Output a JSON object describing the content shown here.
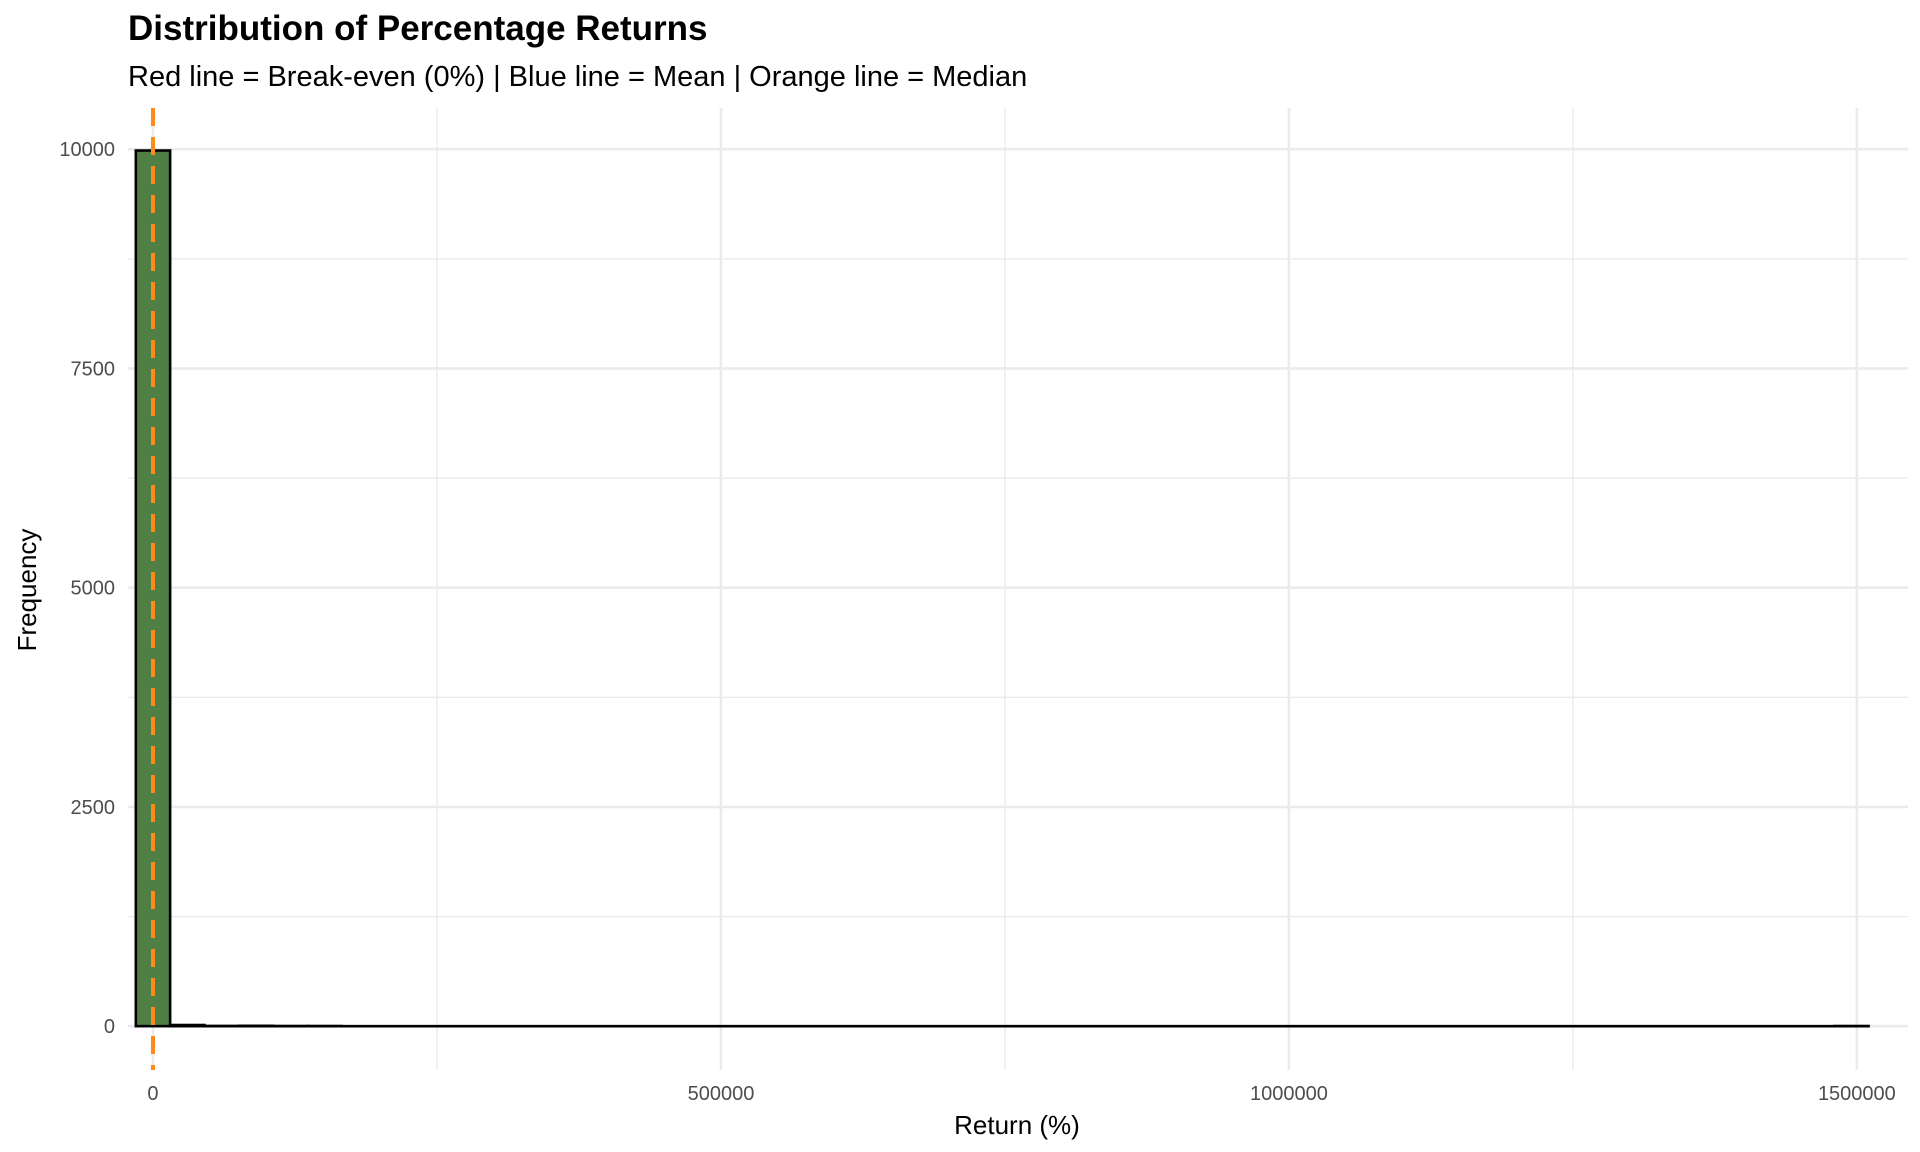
{
  "chart_data": {
    "type": "bar",
    "subtype": "histogram",
    "title": "Distribution of Percentage Returns",
    "subtitle": "Red line = Break-even (0%) | Blue line = Mean | Orange line = Median",
    "xlabel": "Return (%)",
    "ylabel": "Frequency",
    "xlim": [
      -22000,
      1545000
    ],
    "ylim": [
      -500,
      10470
    ],
    "x_ticks": [
      {
        "value": 0,
        "label": "0"
      },
      {
        "value": 500000,
        "label": "500000"
      },
      {
        "value": 1000000,
        "label": "1000000"
      },
      {
        "value": 1500000,
        "label": "1500000"
      }
    ],
    "x_minor_ticks": [
      250000,
      750000,
      1250000
    ],
    "y_ticks": [
      {
        "value": 0,
        "label": "0"
      },
      {
        "value": 2500,
        "label": "2500"
      },
      {
        "value": 5000,
        "label": "5000"
      },
      {
        "value": 7500,
        "label": "7500"
      },
      {
        "value": 10000,
        "label": "10000"
      }
    ],
    "y_minor_ticks": [
      1250,
      3750,
      6250,
      8750
    ],
    "grid": true,
    "legend": "none",
    "bin_width": 30200,
    "bins": [
      {
        "x0": -15100,
        "x1": 15100,
        "count": 9985
      },
      {
        "x0": 15100,
        "x1": 45300,
        "count": 13
      },
      {
        "x0": 45300,
        "x1": 75500,
        "count": 2
      },
      {
        "x0": 75500,
        "x1": 105700,
        "count": 4
      },
      {
        "x0": 105700,
        "x1": 135900,
        "count": 1
      },
      {
        "x0": 135900,
        "x1": 166100,
        "count": 1
      },
      {
        "x0": 1480100,
        "x1": 1510300,
        "count": 1
      }
    ],
    "fill_color": "#4f7f45",
    "outline_color": "#000000",
    "reference_lines": [
      {
        "name": "Break-even",
        "value": 0,
        "color": "#e41a1c",
        "style": "dashed"
      },
      {
        "name": "Mean",
        "value": 0,
        "color": "#377eb8",
        "style": "dashed"
      },
      {
        "name": "Median",
        "value": 0,
        "color": "#ff8c1a",
        "style": "dashed"
      }
    ],
    "grid_color": "#ebebeb"
  }
}
